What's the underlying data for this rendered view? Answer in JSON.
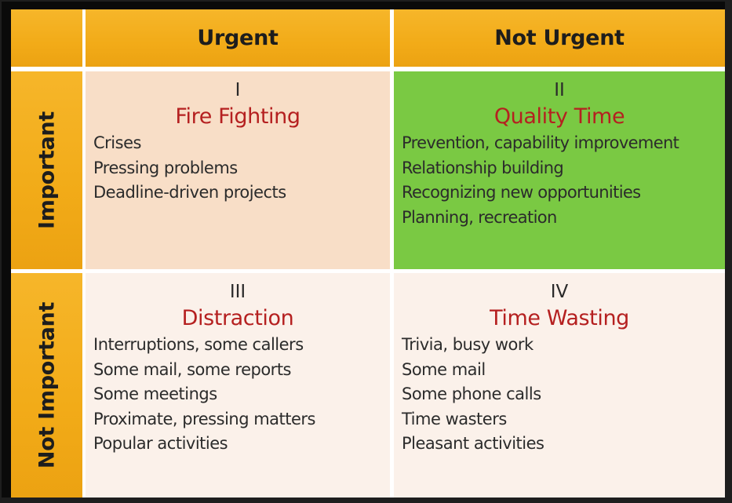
{
  "header": {
    "col_urgent": "Urgent",
    "col_not_urgent": "Not Urgent"
  },
  "rows": {
    "important": "Important",
    "not_important": "Not Important"
  },
  "quadrants": [
    {
      "numeral": "I",
      "title": "Fire Fighting",
      "items": [
        "Crises",
        "Pressing problems",
        "Deadline-driven projects"
      ]
    },
    {
      "numeral": "II",
      "title": "Quality Time",
      "items": [
        "Prevention, capability improvement",
        "Relationship building",
        "Recognizing new opportunities",
        "Planning, recreation"
      ]
    },
    {
      "numeral": "III",
      "title": "Distraction",
      "items": [
        "Interruptions, some callers",
        "Some mail, some reports",
        "Some meetings",
        "Proximate, pressing matters",
        "Popular activities"
      ]
    },
    {
      "numeral": "IV",
      "title": "Time Wasting",
      "items": [
        "Trivia, busy work",
        "Some mail",
        "Some phone calls",
        "Time wasters",
        "Pleasant activities"
      ]
    }
  ],
  "colors": {
    "header_gold": "#f2ab18",
    "quadrant_1_bg": "#f8dec7",
    "quadrant_2_bg": "#7ac943",
    "quadrant_3_4_bg": "#fbf1ea",
    "title_red": "#b52020"
  }
}
